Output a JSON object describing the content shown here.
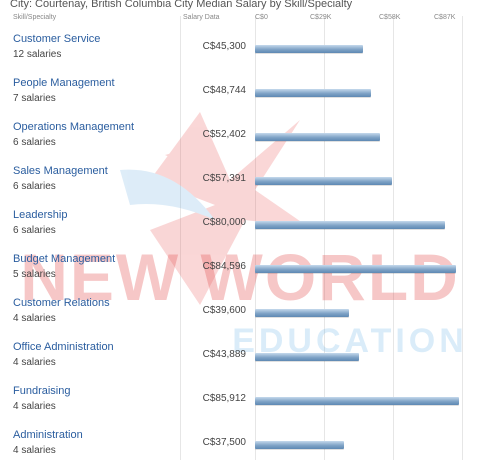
{
  "header": {
    "title": "City: Courtenay, British Columbia City Median Salary by Skill/Specialty",
    "col_skill": "Skill/Specialty",
    "col_salary": "Salary Data"
  },
  "watermark": {
    "line1": "NEW WORLD",
    "line2": "EDUCATION"
  },
  "chart_data": {
    "type": "bar",
    "orientation": "horizontal",
    "title": "City: Courtenay, British Columbia City Median Salary by Skill/Specialty",
    "x_ticks": [
      "C$0",
      "C$29K",
      "C$58K",
      "C$87K"
    ],
    "xlim": [
      0,
      87000
    ],
    "categories": [
      "Customer Service",
      "People Management",
      "Operations Management",
      "Sales Management",
      "Leadership",
      "Budget Management",
      "Customer Relations",
      "Office Administration",
      "Fundraising",
      "Administration"
    ],
    "counts": [
      "12 salaries",
      "7 salaries",
      "6 salaries",
      "6 salaries",
      "6 salaries",
      "5 salaries",
      "4 salaries",
      "4 salaries",
      "4 salaries",
      "4 salaries"
    ],
    "labels": [
      "C$45,300",
      "C$48,744",
      "C$52,402",
      "C$57,391",
      "C$80,000",
      "C$84,596",
      "C$39,600",
      "C$43,889",
      "C$85,912",
      "C$37,500"
    ],
    "values": [
      45300,
      48744,
      52402,
      57391,
      80000,
      84596,
      39600,
      43889,
      85912,
      37500
    ],
    "bar_color": "#6f97be"
  }
}
